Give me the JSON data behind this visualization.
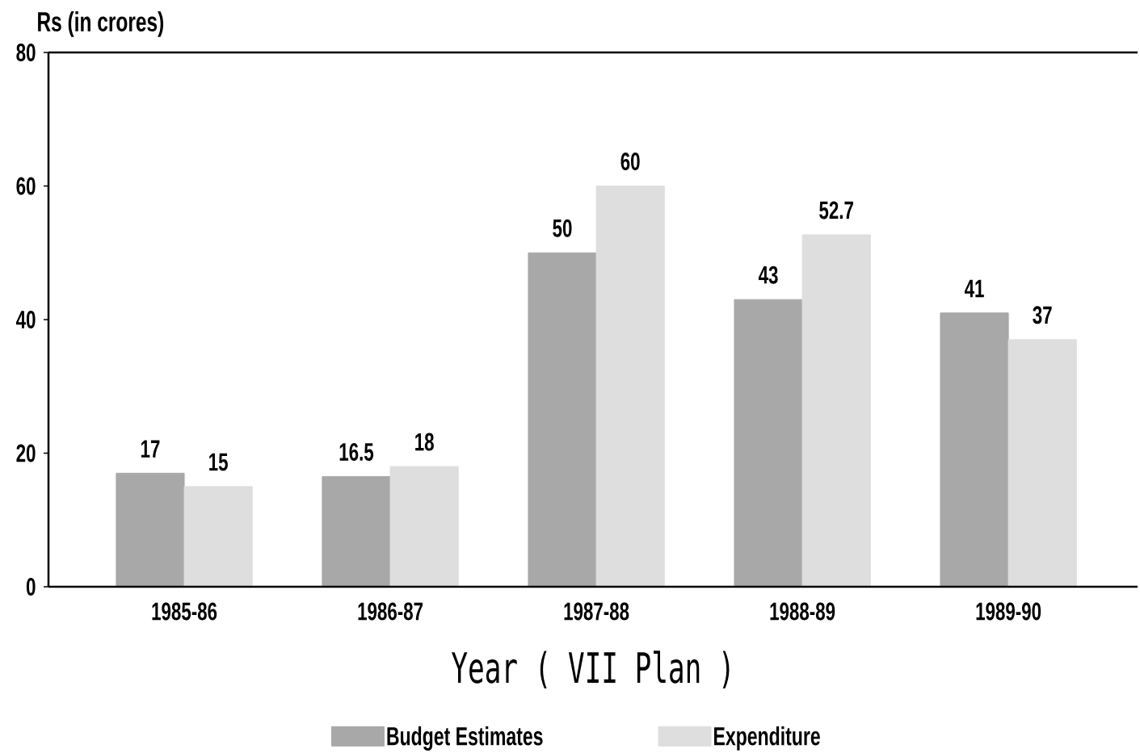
{
  "chart_data": {
    "type": "bar",
    "xlabel": "Year ( VII Plan )",
    "ylabel": "Rs (in crores)",
    "categories": [
      "1985-86",
      "1986-87",
      "1987-88",
      "1988-89",
      "1989-90"
    ],
    "series": [
      {
        "name": "Budget Estimates",
        "color": "#a8a8a8",
        "values": [
          17,
          16.5,
          50,
          43,
          41
        ]
      },
      {
        "name": "Expenditure",
        "color": "#dedede",
        "values": [
          15,
          18,
          60,
          52.7,
          37
        ]
      }
    ],
    "ylim": [
      0,
      80
    ],
    "yticks": [
      0,
      20,
      40,
      60,
      80
    ],
    "data_labels": true,
    "legend": "bottom"
  }
}
